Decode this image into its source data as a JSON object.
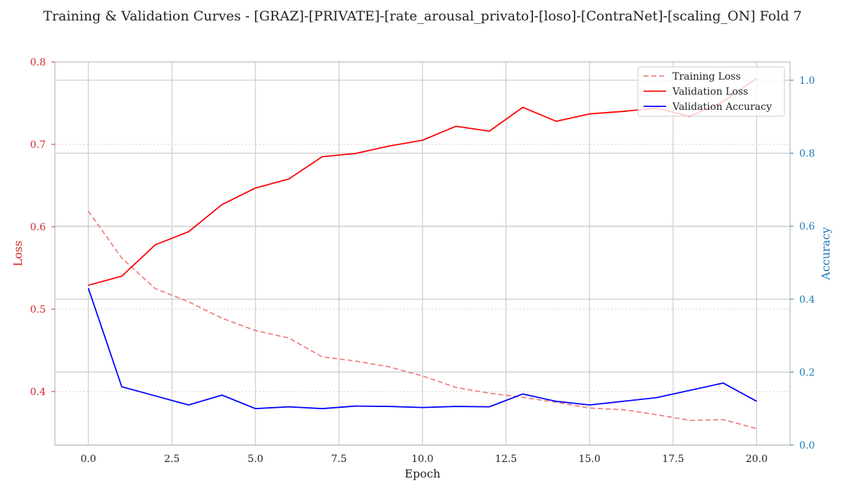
{
  "chart_data": {
    "type": "line",
    "title": "Training & Validation Curves - [GRAZ]-[PRIVATE]-[rate_arousal_privato]-[loso]-[ContraNet]-[scaling_ON] Fold 7",
    "xlabel": "Epoch",
    "ylabel_left": "Loss",
    "ylabel_right": "Accuracy",
    "xlim": [
      -1,
      21
    ],
    "ylim_left": [
      0.335,
      0.8
    ],
    "ylim_right": [
      0.0,
      1.05
    ],
    "x_ticks": [
      "0.0",
      "2.5",
      "5.0",
      "7.5",
      "10.0",
      "12.5",
      "15.0",
      "17.5",
      "20.0"
    ],
    "y_left_ticks": [
      "0.4",
      "0.5",
      "0.6",
      "0.7",
      "0.8"
    ],
    "y_right_ticks": [
      "0.0",
      "0.2",
      "0.4",
      "0.6",
      "0.8",
      "1.0"
    ],
    "grid": true,
    "legend_position": "top-right",
    "x": [
      0,
      1,
      2,
      3,
      4,
      5,
      6,
      7,
      8,
      9,
      10,
      11,
      12,
      13,
      14,
      15,
      16,
      17,
      18,
      19,
      20
    ],
    "series": [
      {
        "name": "Training Loss",
        "axis": "left",
        "style": "dashed",
        "color": "#f08080",
        "values": [
          0.619,
          0.562,
          0.525,
          0.509,
          0.489,
          0.474,
          0.465,
          0.442,
          0.437,
          0.43,
          0.419,
          0.405,
          0.398,
          0.393,
          0.387,
          0.38,
          0.378,
          0.372,
          0.365,
          0.366,
          0.355
        ]
      },
      {
        "name": "Validation Loss",
        "axis": "left",
        "style": "solid",
        "color": "#ff0000",
        "values": [
          0.529,
          0.54,
          0.578,
          0.594,
          0.627,
          0.647,
          0.658,
          0.685,
          0.689,
          0.698,
          0.705,
          0.722,
          0.716,
          0.745,
          0.728,
          0.737,
          0.74,
          0.744,
          0.734,
          0.752,
          0.78
        ]
      },
      {
        "name": "Validation Accuracy",
        "axis": "right",
        "style": "solid",
        "color": "#0000ff",
        "values": [
          0.43,
          0.16,
          0.135,
          0.11,
          0.137,
          0.1,
          0.105,
          0.1,
          0.107,
          0.106,
          0.103,
          0.106,
          0.105,
          0.14,
          0.12,
          0.11,
          0.12,
          0.13,
          0.15,
          0.17,
          0.12
        ]
      }
    ]
  }
}
